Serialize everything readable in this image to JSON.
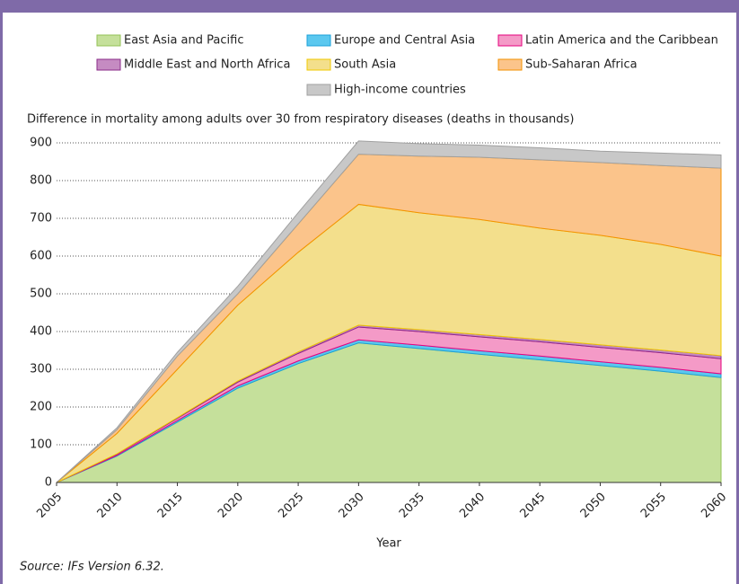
{
  "chart_data": {
    "type": "stacked_area",
    "ylabel": "Difference in mortality among adults over 30 from respiratory diseases (deaths in thousands)",
    "xlabel": "Year",
    "source": "Source: IFs Version 6.32.",
    "x": [
      2005,
      2010,
      2015,
      2020,
      2025,
      2030,
      2035,
      2040,
      2045,
      2050,
      2055,
      2060
    ],
    "xlim": [
      2005,
      2060
    ],
    "xticks": [
      2005,
      2010,
      2015,
      2020,
      2025,
      2030,
      2035,
      2040,
      2045,
      2050,
      2055,
      2060
    ],
    "ylim": [
      0,
      900
    ],
    "yticks": [
      0,
      100,
      200,
      300,
      400,
      500,
      600,
      700,
      800,
      900
    ],
    "grid": true,
    "series": [
      {
        "name": "East Asia and Pacific",
        "color": "#c5e09b",
        "values": [
          0,
          70,
          160,
          250,
          315,
          370,
          355,
          340,
          325,
          310,
          295,
          278
        ]
      },
      {
        "name": "Europe and Central Asia",
        "color": "#5bc8ef",
        "values": [
          0,
          2,
          4,
          6,
          7,
          8,
          9,
          9,
          10,
          10,
          10,
          10
        ]
      },
      {
        "name": "Latin America and the Caribbean",
        "color": "#f49ac7",
        "values": [
          0,
          3,
          6,
          10,
          20,
          34,
          36,
          37,
          38,
          38,
          39,
          40
        ]
      },
      {
        "name": "Middle East and North Africa",
        "color": "#c58bc2",
        "values": [
          0,
          1,
          2,
          3,
          4,
          5,
          5,
          6,
          6,
          7,
          7,
          8
        ]
      },
      {
        "name": "South Asia",
        "color": "#f3df8c",
        "values": [
          0,
          54,
          128,
          201,
          264,
          320,
          310,
          305,
          295,
          290,
          280,
          264
        ]
      },
      {
        "name": "Sub-Saharan Africa",
        "color": "#fbc48b",
        "values": [
          0,
          10,
          35,
          30,
          75,
          133,
          150,
          165,
          181,
          193,
          209,
          233
        ]
      },
      {
        "name": "High-income countries",
        "color": "#c8c8c8",
        "values": [
          0,
          5,
          10,
          20,
          30,
          35,
          33,
          32,
          32,
          30,
          33,
          35
        ]
      }
    ]
  }
}
